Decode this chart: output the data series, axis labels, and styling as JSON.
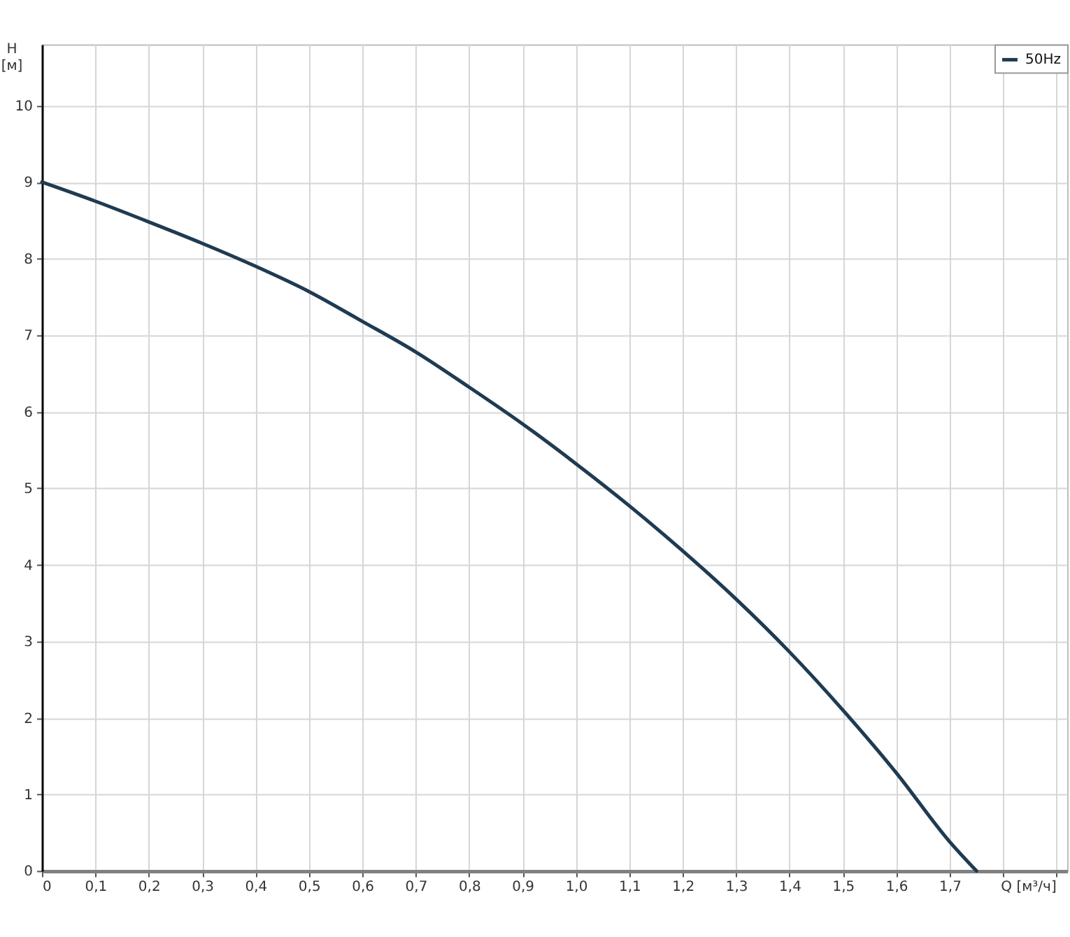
{
  "chart_data": {
    "type": "line",
    "xlabel": "Q [м³/ч]",
    "ylabel": "H [м]",
    "x": [
      0,
      0.1,
      0.2,
      0.3,
      0.4,
      0.5,
      0.6,
      0.7,
      0.8,
      0.9,
      1.0,
      1.1,
      1.2,
      1.3,
      1.4,
      1.5,
      1.6,
      1.7,
      1.75
    ],
    "series": [
      {
        "name": "50Hz",
        "color": "#1f3b52",
        "values": [
          9.0,
          8.75,
          8.48,
          8.2,
          7.9,
          7.57,
          7.18,
          6.78,
          6.32,
          5.84,
          5.32,
          4.77,
          4.18,
          3.55,
          2.86,
          2.1,
          1.28,
          0.38,
          0
        ]
      }
    ],
    "xlim": [
      0,
      1.92
    ],
    "ylim": [
      0,
      10.8
    ],
    "xticks": [
      0,
      {
        "value": 0.1,
        "label": "0,1"
      },
      {
        "value": 0.2,
        "label": "0,2"
      },
      {
        "value": 0.3,
        "label": "0,3"
      },
      {
        "value": 0.4,
        "label": "0,4"
      },
      {
        "value": 0.5,
        "label": "0,5"
      },
      {
        "value": 0.6,
        "label": "0,6"
      },
      {
        "value": 0.7,
        "label": "0,7"
      },
      {
        "value": 0.8,
        "label": "0,8"
      },
      {
        "value": 0.9,
        "label": "0,9"
      },
      {
        "value": 1,
        "label": "1,0"
      },
      {
        "value": 1.1,
        "label": "1,1"
      },
      {
        "value": 1.2,
        "label": "1,2"
      },
      {
        "value": 1.3,
        "label": "1,3"
      },
      {
        "value": 1.4,
        "label": "1,4"
      },
      {
        "value": 1.5,
        "label": "1,5"
      },
      {
        "value": 1.6,
        "label": "1,6"
      },
      {
        "value": 1.7,
        "label": "1,7"
      },
      {
        "value": 1.8,
        "label": null
      },
      {
        "value": 1.9,
        "label": null
      }
    ],
    "yticks": [
      0,
      1,
      2,
      3,
      4,
      5,
      6,
      7,
      8,
      9,
      10
    ],
    "grid": true,
    "legend": "top right"
  }
}
